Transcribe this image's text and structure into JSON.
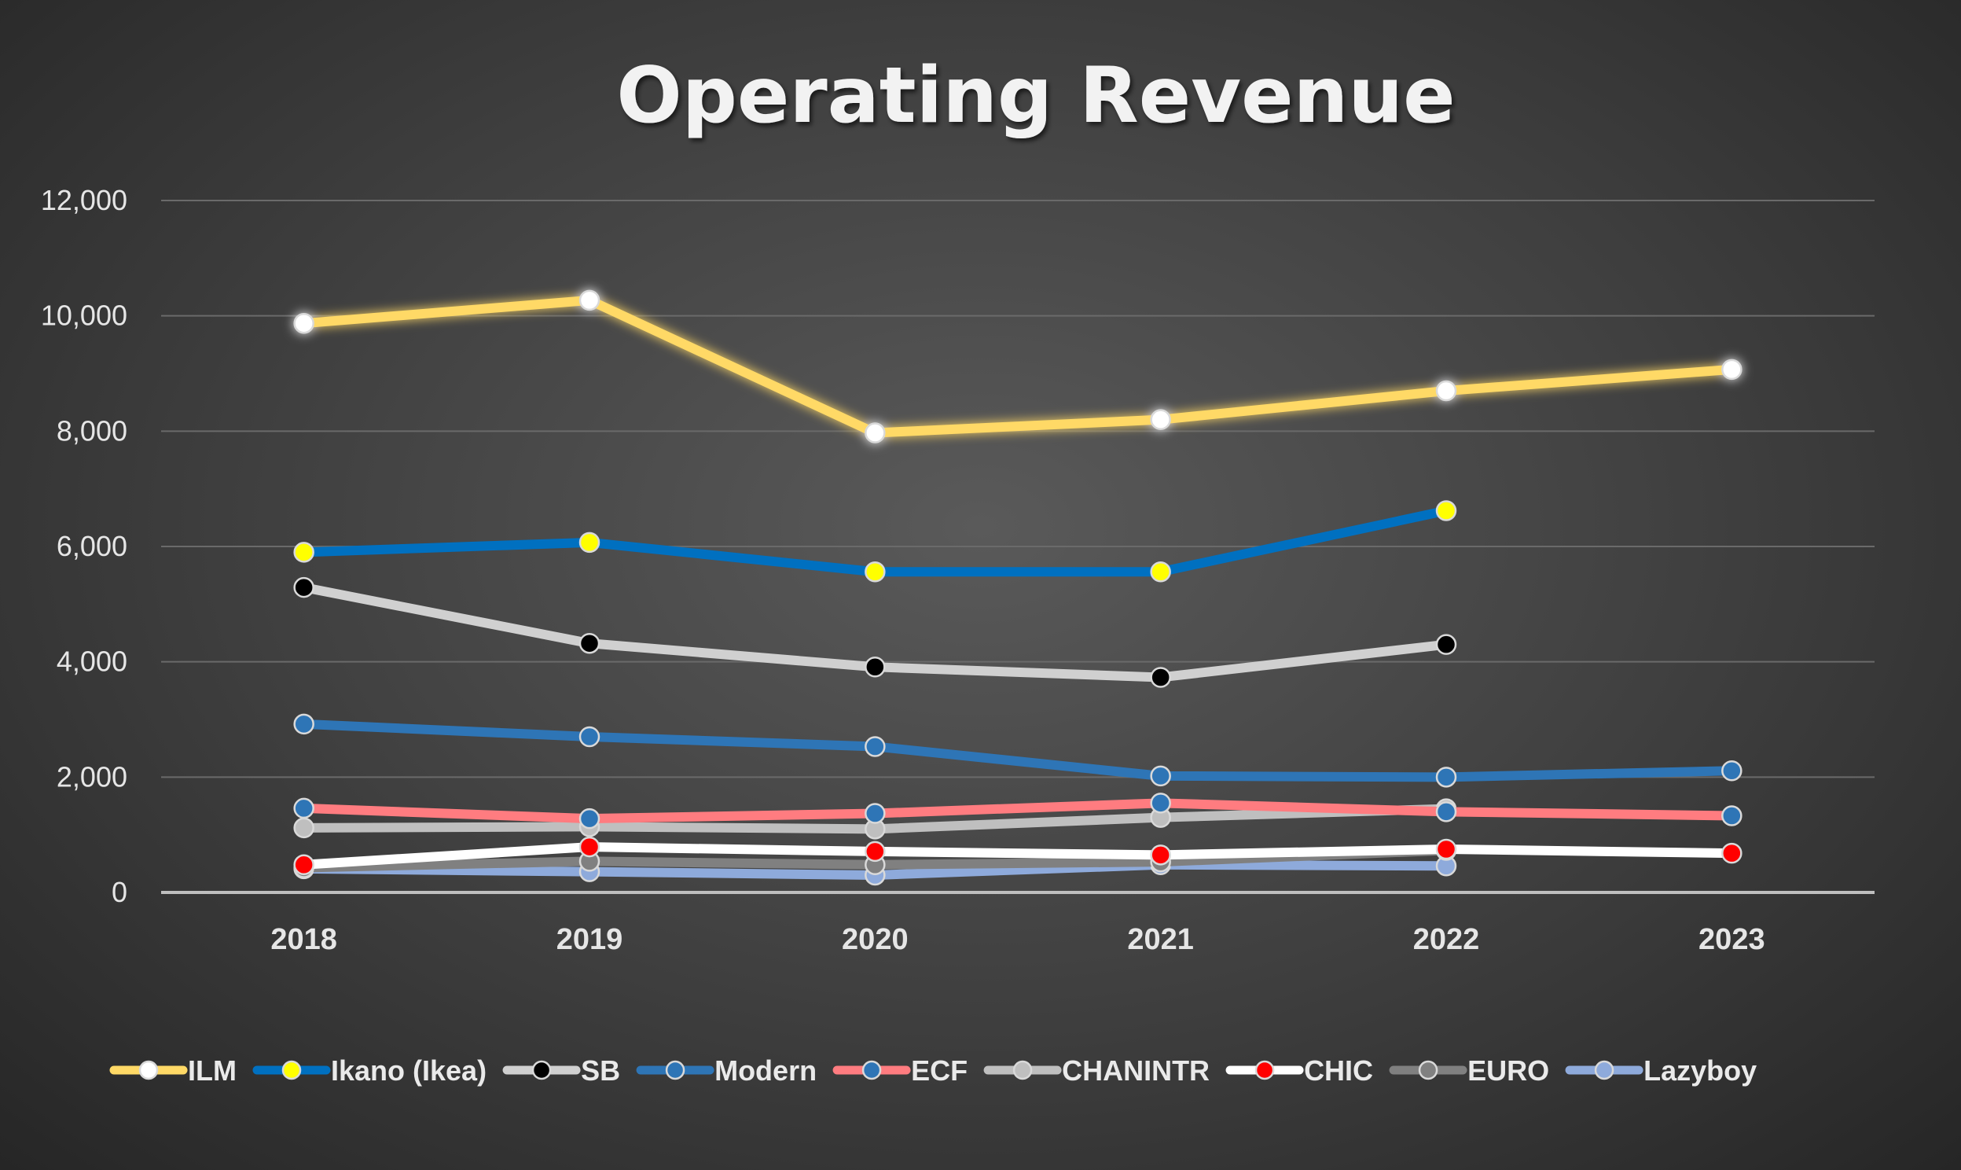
{
  "chart_data": {
    "type": "line",
    "title": "Operating Revenue",
    "xlabel": "",
    "ylabel": "",
    "categories": [
      "2018",
      "2019",
      "2020",
      "2021",
      "2022",
      "2023"
    ],
    "ylim": [
      0,
      12000
    ],
    "yticks": [
      0,
      2000,
      4000,
      6000,
      8000,
      10000,
      12000
    ],
    "ytick_labels": [
      "0",
      "2,000",
      "4,000",
      "6,000",
      "8,000",
      "10,000",
      "12,000"
    ],
    "grid": true,
    "legend_position": "bottom",
    "series": [
      {
        "name": "ILM",
        "values": [
          9870,
          10270,
          7970,
          8200,
          8700,
          9070
        ],
        "line_color": "#ffd966",
        "marker_color": "#ffffff",
        "glow": true
      },
      {
        "name": "Ikano (Ikea)",
        "values": [
          5900,
          6070,
          5560,
          5560,
          6620,
          null
        ],
        "line_color": "#0070c0",
        "marker_color": "#ffff00"
      },
      {
        "name": "SB",
        "values": [
          5290,
          4320,
          3910,
          3730,
          4300,
          null
        ],
        "line_color": "#d0d0d0",
        "marker_color": "#000000"
      },
      {
        "name": "Modern",
        "values": [
          2920,
          2700,
          2530,
          2020,
          2000,
          2110
        ],
        "line_color": "#2e75b6",
        "marker_color": "#2e75b6"
      },
      {
        "name": "ECF",
        "values": [
          1460,
          1280,
          1370,
          1550,
          1400,
          1330
        ],
        "line_color": "#ff7c80",
        "marker_color": "#2e75b6"
      },
      {
        "name": "CHANINTR",
        "values": [
          1120,
          1140,
          1100,
          1300,
          1450,
          null
        ],
        "line_color": "#bfbfbf",
        "marker_color": "#bfbfbf"
      },
      {
        "name": "CHIC",
        "values": [
          480,
          790,
          710,
          650,
          750,
          680
        ],
        "line_color": "#ffffff",
        "marker_color": "#ff0000"
      },
      {
        "name": "EURO",
        "values": [
          430,
          540,
          480,
          530,
          730,
          null
        ],
        "line_color": "#808080",
        "marker_color": "#808080"
      },
      {
        "name": "Lazyboy",
        "values": [
          410,
          360,
          300,
          480,
          460,
          null
        ],
        "line_color": "#8eaadb",
        "marker_color": "#8eaadb"
      }
    ]
  }
}
